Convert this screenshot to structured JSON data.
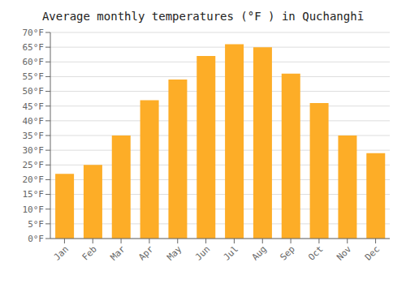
{
  "chart_data": {
    "type": "bar",
    "title": "Average monthly temperatures (°F ) in Quchanghī",
    "categories": [
      "Jan",
      "Feb",
      "Mar",
      "Apr",
      "May",
      "Jun",
      "Jul",
      "Aug",
      "Sep",
      "Oct",
      "Nov",
      "Dec"
    ],
    "values": [
      22,
      25,
      35,
      47,
      54,
      62,
      66,
      65,
      56,
      46,
      35,
      29
    ],
    "color": "#FDAD27",
    "ylim": [
      0,
      70
    ],
    "yticks": [
      {
        "value": 0,
        "label": "0°F"
      },
      {
        "value": 5,
        "label": "5°F"
      },
      {
        "value": 10,
        "label": "10°F"
      },
      {
        "value": 15,
        "label": "15°F"
      },
      {
        "value": 20,
        "label": "20°F"
      },
      {
        "value": 25,
        "label": "25°F"
      },
      {
        "value": 30,
        "label": "30°F"
      },
      {
        "value": 35,
        "label": "35°F"
      },
      {
        "value": 40,
        "label": "40°F"
      },
      {
        "value": 45,
        "label": "45°F"
      },
      {
        "value": 50,
        "label": "50°F"
      },
      {
        "value": 55,
        "label": "55°F"
      },
      {
        "value": 60,
        "label": "60°F"
      },
      {
        "value": 65,
        "label": "65°F"
      },
      {
        "value": 70,
        "label": "70°F"
      }
    ],
    "grid": true
  }
}
